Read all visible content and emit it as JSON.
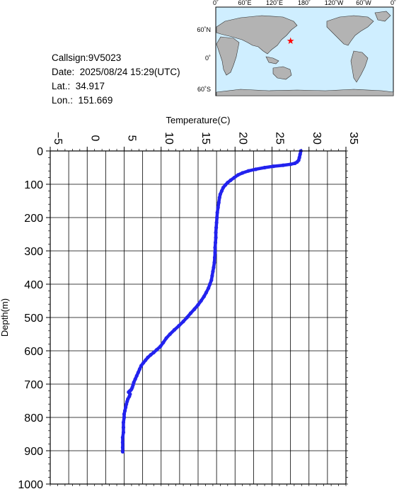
{
  "info": {
    "callsign": "Callsign:9V5023",
    "date": "Date:  2025/08/24 15:29(UTC)",
    "lat": "Lat.:  34.917",
    "lon": "Lon.:  151.669"
  },
  "map": {
    "lon_labels": [
      "0˚",
      "60˚E",
      "120˚E",
      "180˚",
      "120˚W",
      "60˚W",
      "0˚"
    ],
    "lat_labels": [
      "60˚N",
      "0˚",
      "60˚S"
    ],
    "marker": {
      "lat": 34.917,
      "lon": 151.669,
      "color": "#ff0000"
    }
  },
  "chart_data": {
    "type": "scatter",
    "title": "",
    "xlabel": "Temperature(C)",
    "ylabel": "Depth(m)",
    "xlim": [
      -5,
      35
    ],
    "ylim": [
      0,
      1000
    ],
    "y_inverted": true,
    "x_ticks": [
      -5,
      0,
      5,
      10,
      15,
      20,
      25,
      30,
      35
    ],
    "y_ticks": [
      0,
      100,
      200,
      300,
      400,
      500,
      600,
      700,
      800,
      900,
      1000
    ],
    "x_tick_labels": [
      "−5",
      "0",
      "5",
      "10",
      "15",
      "20",
      "25",
      "30",
      "35"
    ],
    "y_tick_labels": [
      "0",
      "100",
      "200",
      "300",
      "400",
      "500",
      "600",
      "700",
      "800",
      "900",
      "1000"
    ],
    "grid": true,
    "series": [
      {
        "color": "#2222ee",
        "x": [
          28.9,
          28.8,
          28.7,
          28.6,
          28.4,
          28.1,
          27.5,
          26.5,
          25.2,
          24.0,
          22.8,
          21.8,
          21.0,
          20.4,
          19.9,
          19.4,
          19.0,
          18.7,
          18.4,
          18.2,
          18.0,
          17.9,
          17.8,
          17.7,
          17.6,
          17.55,
          17.5,
          17.45,
          17.4,
          17.4,
          17.35,
          17.3,
          17.3,
          17.25,
          17.2,
          17.1,
          17.0,
          16.9,
          16.8,
          16.6,
          16.4,
          16.1,
          15.8,
          15.4,
          15.0,
          14.5,
          14.0,
          13.5,
          13.0,
          12.4,
          11.8,
          11.2,
          10.7,
          10.3,
          9.9,
          9.4,
          9.0,
          8.6,
          8.2,
          7.9,
          7.6,
          7.3,
          7.1,
          6.9,
          6.7,
          6.5,
          6.3,
          6.2,
          6.1,
          6.0,
          5.9,
          5.8,
          5.7,
          5.6,
          5.8,
          5.7,
          5.5,
          5.4,
          5.3,
          5.2,
          5.1,
          5.0,
          5.0,
          4.9,
          4.9,
          4.9,
          4.8,
          4.8,
          4.8,
          4.8
        ],
        "y": [
          0,
          10,
          20,
          28,
          33,
          37,
          40,
          43,
          46,
          50,
          55,
          60,
          66,
          72,
          80,
          88,
          95,
          102,
          110,
          120,
          130,
          140,
          155,
          170,
          185,
          200,
          215,
          230,
          245,
          260,
          275,
          290,
          305,
          320,
          335,
          350,
          362,
          375,
          388,
          400,
          412,
          425,
          437,
          450,
          462,
          475,
          487,
          500,
          512,
          525,
          537,
          550,
          562,
          575,
          587,
          597,
          605,
          612,
          620,
          628,
          636,
          645,
          655,
          665,
          675,
          685,
          695,
          703,
          710,
          715,
          718,
          720,
          722,
          724,
          730,
          737,
          745,
          752,
          760,
          770,
          780,
          790,
          800,
          815,
          830,
          845,
          860,
          875,
          890,
          903
        ]
      }
    ]
  }
}
